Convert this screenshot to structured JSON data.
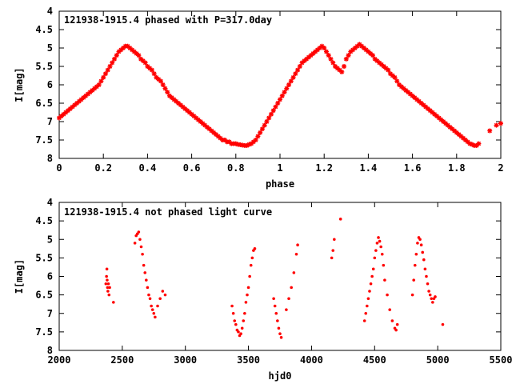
{
  "chart_data": [
    {
      "type": "scatter",
      "title": "121938-1915.4 phased with P=317.0day",
      "xlabel": "phase",
      "ylabel": "I[mag]",
      "xlim": [
        0,
        2
      ],
      "ylim": [
        4,
        8
      ],
      "y_inverted": true,
      "xticks": [
        0,
        0.2,
        0.4,
        0.6,
        0.8,
        1,
        1.2,
        1.4,
        1.6,
        1.8,
        2
      ],
      "xtick_labels": [
        "0",
        "0.2",
        "0.4",
        "0.6",
        "0.8",
        "1",
        "1.2",
        "1.4",
        "1.6",
        "1.8",
        "2"
      ],
      "yticks": [
        4,
        4.5,
        5,
        5.5,
        6,
        6.5,
        7,
        7.5,
        8
      ],
      "ytick_labels": [
        "4",
        "4.5",
        "5",
        "5.5",
        "6",
        "6.5",
        "7",
        "7.5",
        "8"
      ],
      "grid": false,
      "marker": "star",
      "color": "#ff0000",
      "series": [
        {
          "x": [
            0.0,
            0.01,
            0.02,
            0.03,
            0.04,
            0.05,
            0.06,
            0.07,
            0.08,
            0.09,
            0.1,
            0.11,
            0.12,
            0.13,
            0.14,
            0.15,
            0.16,
            0.17,
            0.18,
            0.19,
            0.2,
            0.21,
            0.22,
            0.23,
            0.24,
            0.25,
            0.26,
            0.27,
            0.28,
            0.29,
            0.3,
            0.31,
            0.32,
            0.33,
            0.34,
            0.35,
            0.36,
            0.37,
            0.38,
            0.39,
            0.4,
            0.41,
            0.42,
            0.43,
            0.44,
            0.45,
            0.46,
            0.47,
            0.48,
            0.49,
            0.5,
            0.51,
            0.52,
            0.53,
            0.54,
            0.55,
            0.56,
            0.57,
            0.58,
            0.59,
            0.6,
            0.61,
            0.62,
            0.63,
            0.64,
            0.65,
            0.66,
            0.67,
            0.68,
            0.69,
            0.7,
            0.71,
            0.72,
            0.73,
            0.74,
            0.75,
            0.76,
            0.77,
            0.78,
            0.79,
            0.8,
            0.81,
            0.82,
            0.83,
            0.84,
            0.85,
            0.86,
            0.87,
            0.88,
            0.89,
            0.9,
            0.91,
            0.92,
            0.93,
            0.94,
            0.95,
            0.96,
            0.97,
            0.98,
            0.99,
            1.0,
            1.01,
            1.02,
            1.03,
            1.04,
            1.05,
            1.06,
            1.07,
            1.08,
            1.09,
            1.1,
            1.11,
            1.12,
            1.13,
            1.14,
            1.15,
            1.16,
            1.17,
            1.18,
            1.19,
            1.2,
            1.21,
            1.22,
            1.23,
            1.24,
            1.25,
            1.26,
            1.27,
            1.28,
            1.29,
            1.3,
            1.31,
            1.32,
            1.33,
            1.34,
            1.35,
            1.36,
            1.37,
            1.38,
            1.39,
            1.4,
            1.41,
            1.42,
            1.43,
            1.44,
            1.45,
            1.46,
            1.47,
            1.48,
            1.49,
            1.5,
            1.51,
            1.52,
            1.53,
            1.54,
            1.55,
            1.56,
            1.57,
            1.58,
            1.59,
            1.6,
            1.61,
            1.62,
            1.63,
            1.64,
            1.65,
            1.66,
            1.67,
            1.68,
            1.69,
            1.7,
            1.71,
            1.72,
            1.73,
            1.74,
            1.75,
            1.76,
            1.77,
            1.78,
            1.79,
            1.8,
            1.81,
            1.82,
            1.83,
            1.84,
            1.85,
            1.86,
            1.87,
            1.88,
            1.89,
            1.9,
            1.95,
            1.98,
            2.0
          ],
          "y": [
            6.9,
            6.85,
            6.8,
            6.75,
            6.7,
            6.65,
            6.6,
            6.55,
            6.5,
            6.45,
            6.4,
            6.35,
            6.3,
            6.25,
            6.2,
            6.15,
            6.1,
            6.05,
            6.0,
            5.9,
            5.8,
            5.7,
            5.6,
            5.5,
            5.4,
            5.3,
            5.2,
            5.1,
            5.05,
            5.0,
            4.95,
            4.95,
            5.0,
            5.05,
            5.1,
            5.15,
            5.2,
            5.3,
            5.35,
            5.4,
            5.5,
            5.55,
            5.6,
            5.7,
            5.8,
            5.85,
            5.9,
            6.0,
            6.1,
            6.2,
            6.3,
            6.35,
            6.4,
            6.45,
            6.5,
            6.55,
            6.6,
            6.65,
            6.7,
            6.75,
            6.8,
            6.85,
            6.9,
            6.95,
            7.0,
            7.05,
            7.1,
            7.15,
            7.2,
            7.25,
            7.3,
            7.35,
            7.4,
            7.45,
            7.5,
            7.5,
            7.55,
            7.55,
            7.6,
            7.6,
            7.6,
            7.62,
            7.63,
            7.64,
            7.65,
            7.65,
            7.62,
            7.6,
            7.55,
            7.5,
            7.4,
            7.3,
            7.2,
            7.1,
            7.0,
            6.9,
            6.8,
            6.7,
            6.6,
            6.5,
            6.4,
            6.3,
            6.2,
            6.1,
            6.0,
            5.9,
            5.8,
            5.7,
            5.6,
            5.5,
            5.4,
            5.35,
            5.3,
            5.25,
            5.2,
            5.15,
            5.1,
            5.05,
            5.0,
            4.95,
            5.0,
            5.1,
            5.2,
            5.3,
            5.4,
            5.5,
            5.55,
            5.6,
            5.65,
            5.5,
            5.3,
            5.2,
            5.1,
            5.05,
            5.0,
            4.95,
            4.9,
            4.95,
            5.0,
            5.05,
            5.1,
            5.15,
            5.2,
            5.3,
            5.35,
            5.4,
            5.45,
            5.5,
            5.55,
            5.6,
            5.7,
            5.75,
            5.8,
            5.9,
            6.0,
            6.05,
            6.1,
            6.15,
            6.2,
            6.25,
            6.3,
            6.35,
            6.4,
            6.45,
            6.5,
            6.55,
            6.6,
            6.65,
            6.7,
            6.75,
            6.8,
            6.85,
            6.9,
            6.95,
            7.0,
            7.05,
            7.1,
            7.15,
            7.2,
            7.25,
            7.3,
            7.35,
            7.4,
            7.45,
            7.5,
            7.55,
            7.6,
            7.62,
            7.65,
            7.65,
            7.6,
            7.25,
            7.1,
            7.05
          ]
        }
      ]
    },
    {
      "type": "scatter",
      "title": "121938-1915.4 not phased light curve",
      "xlabel": "hjd0",
      "ylabel": "I[mag]",
      "xlim": [
        2000,
        5500
      ],
      "ylim": [
        4,
        8
      ],
      "y_inverted": true,
      "xticks": [
        2000,
        2500,
        3000,
        3500,
        4000,
        4500,
        5000,
        5500
      ],
      "xtick_labels": [
        "2000",
        "2500",
        "3000",
        "3500",
        "4000",
        "4500",
        "5000",
        "5500"
      ],
      "yticks": [
        4,
        4.5,
        5,
        5.5,
        6,
        6.5,
        7,
        7.5,
        8
      ],
      "ytick_labels": [
        "4",
        "4.5",
        "5",
        "5.5",
        "6",
        "6.5",
        "7",
        "7.5",
        "8"
      ],
      "grid": false,
      "marker": "dot",
      "color": "#ff0000",
      "series": [
        {
          "x": [
            2370,
            2375,
            2378,
            2380,
            2383,
            2386,
            2390,
            2395,
            2400,
            2430,
            2600,
            2610,
            2620,
            2630,
            2640,
            2650,
            2660,
            2670,
            2680,
            2690,
            2700,
            2710,
            2720,
            2730,
            2740,
            2750,
            2760,
            2780,
            2800,
            2820,
            2840,
            3370,
            3380,
            3390,
            3400,
            3410,
            3420,
            3430,
            3440,
            3450,
            3460,
            3470,
            3480,
            3490,
            3500,
            3510,
            3520,
            3530,
            3540,
            3550,
            3700,
            3710,
            3720,
            3730,
            3740,
            3750,
            3760,
            3800,
            3820,
            3840,
            3860,
            3880,
            3890,
            4160,
            4170,
            4180,
            4230,
            4420,
            4430,
            4440,
            4450,
            4460,
            4470,
            4480,
            4490,
            4500,
            4510,
            4520,
            4530,
            4540,
            4550,
            4560,
            4570,
            4580,
            4600,
            4620,
            4640,
            4660,
            4670,
            4680,
            4800,
            4810,
            4820,
            4830,
            4840,
            4850,
            4860,
            4870,
            4880,
            4890,
            4900,
            4910,
            4920,
            4930,
            4940,
            4950,
            4960,
            4970,
            4980,
            5040
          ],
          "y": [
            6.2,
            6.0,
            5.8,
            6.1,
            6.3,
            6.4,
            6.2,
            6.5,
            6.3,
            6.7,
            5.1,
            4.9,
            4.85,
            4.8,
            5.0,
            5.2,
            5.4,
            5.7,
            5.9,
            6.1,
            6.3,
            6.5,
            6.6,
            6.8,
            6.9,
            7.0,
            7.1,
            6.8,
            6.6,
            6.4,
            6.5,
            6.8,
            7.0,
            7.2,
            7.3,
            7.45,
            7.5,
            7.6,
            7.55,
            7.4,
            7.2,
            7.0,
            6.7,
            6.5,
            6.3,
            6.0,
            5.7,
            5.5,
            5.3,
            5.25,
            6.6,
            6.8,
            7.0,
            7.2,
            7.4,
            7.55,
            7.65,
            6.9,
            6.6,
            6.3,
            5.9,
            5.4,
            5.15,
            5.5,
            5.3,
            5.0,
            4.45,
            7.2,
            7.0,
            6.8,
            6.6,
            6.4,
            6.2,
            6.0,
            5.8,
            5.5,
            5.3,
            5.1,
            4.95,
            5.05,
            5.2,
            5.4,
            5.7,
            6.1,
            6.5,
            6.9,
            7.2,
            7.4,
            7.45,
            7.3,
            6.5,
            6.1,
            5.7,
            5.4,
            5.1,
            4.95,
            5.0,
            5.15,
            5.35,
            5.55,
            5.8,
            6.0,
            6.2,
            6.4,
            6.5,
            6.6,
            6.7,
            6.6,
            6.55,
            7.3
          ]
        }
      ]
    }
  ]
}
